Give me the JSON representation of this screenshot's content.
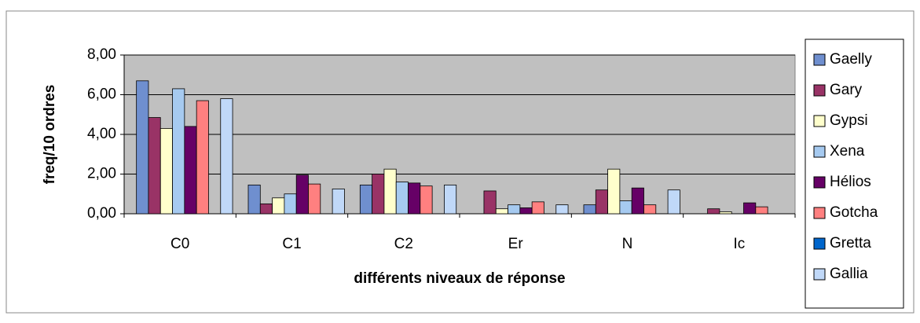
{
  "chart_data": {
    "type": "bar",
    "x_label": "différents niveaux de réponse",
    "y_label": "freq/10 ordres",
    "categories": [
      "C0",
      "C1",
      "C2",
      "Er",
      "N",
      "Ic"
    ],
    "series": [
      {
        "name": "Gaelly",
        "color": "#6f8fcf",
        "values": [
          6.7,
          1.45,
          1.45,
          0,
          0.45,
          0
        ]
      },
      {
        "name": "Gary",
        "color": "#993366",
        "values": [
          4.85,
          0.5,
          2.0,
          1.15,
          1.2,
          0.25
        ]
      },
      {
        "name": "Gypsi",
        "color": "#ffffcc",
        "values": [
          4.3,
          0.8,
          2.25,
          0.25,
          2.25,
          0.1
        ]
      },
      {
        "name": "Xena",
        "color": "#a6caf0",
        "values": [
          6.3,
          1.0,
          1.6,
          0.45,
          0.65,
          0
        ]
      },
      {
        "name": "Hélios",
        "color": "#660066",
        "values": [
          4.4,
          1.95,
          1.55,
          0.3,
          1.3,
          0.55
        ]
      },
      {
        "name": "Gotcha",
        "color": "#ff8080",
        "values": [
          5.7,
          1.5,
          1.4,
          0.6,
          0.45,
          0.35
        ]
      },
      {
        "name": "Gretta",
        "color": "#0066cc",
        "values": [
          0,
          0,
          0,
          0,
          0,
          0
        ]
      },
      {
        "name": "Gallia",
        "color": "#c0d8f8",
        "values": [
          5.8,
          1.25,
          1.45,
          0.45,
          1.2,
          0
        ]
      }
    ],
    "ylim": [
      0,
      8
    ],
    "yticks": [
      {
        "value": 0,
        "label": "0,00"
      },
      {
        "value": 2,
        "label": "2,00"
      },
      {
        "value": 4,
        "label": "4,00"
      },
      {
        "value": 6,
        "label": "6,00"
      },
      {
        "value": 8,
        "label": "8,00"
      }
    ],
    "grid": true,
    "legend": "right",
    "plot_background": "#c0c0c0"
  }
}
